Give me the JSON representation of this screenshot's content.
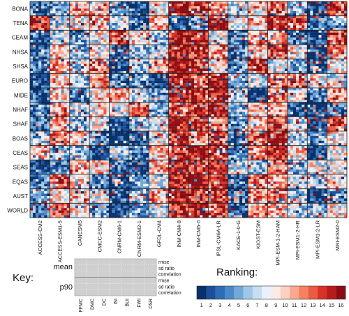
{
  "chart_data": {
    "type": "heatmap",
    "regions": [
      "BONA",
      "TENA",
      "CEAM",
      "NHSA",
      "SHSA",
      "EURO",
      "MIDE",
      "NHAF",
      "SHAF",
      "BOAS",
      "CEAS",
      "SEAS",
      "EQAS",
      "AUST",
      "WORLD"
    ],
    "models": [
      "ACCESS-CM2",
      "ACCESS-ESM1-5",
      "CANESM5",
      "CMCC-ESM2",
      "CNRM-CM6-1",
      "CNRM-ESM2-1",
      "GFDL-CM4",
      "INM-CM4-8",
      "INM-CM5-0",
      "IPSL-CM6A-LR",
      "KACE-1-0-G",
      "KIOST-ESM",
      "MPI-ESM-1-2-HAM",
      "MPI-ESM1-2-HR",
      "MPI-ESM1-2-LR",
      "MRI-ESM2-0"
    ],
    "indices": [
      "FFMC",
      "DMC",
      "DC",
      "ISI",
      "BUI",
      "FWI",
      "DSR"
    ],
    "metrics": [
      "rmse",
      "sd ratio",
      "correlation",
      "rmse",
      "sd ratio",
      "correlation"
    ],
    "statistics": [
      "mean",
      "p90"
    ],
    "block_rank": [
      [
        3,
        5,
        11,
        10,
        4,
        2,
        8,
        16,
        15,
        12,
        7,
        9,
        13,
        6,
        1,
        14
      ],
      [
        14,
        7,
        9,
        12,
        6,
        3,
        11,
        1,
        4,
        16,
        8,
        10,
        15,
        13,
        2,
        5
      ],
      [
        2,
        7,
        5,
        9,
        13,
        10,
        6,
        16,
        15,
        8,
        4,
        12,
        11,
        3,
        1,
        14
      ],
      [
        3,
        11,
        5,
        8,
        2,
        6,
        7,
        16,
        15,
        12,
        4,
        10,
        14,
        9,
        1,
        13
      ],
      [
        3,
        11,
        7,
        13,
        2,
        6,
        12,
        16,
        14,
        10,
        4,
        15,
        8,
        5,
        1,
        9
      ],
      [
        2,
        10,
        6,
        11,
        3,
        4,
        1,
        15,
        14,
        16,
        5,
        7,
        12,
        13,
        9,
        8
      ],
      [
        2,
        10,
        4,
        9,
        11,
        7,
        5,
        16,
        14,
        15,
        6,
        1,
        13,
        8,
        3,
        12
      ],
      [
        4,
        12,
        7,
        9,
        8,
        14,
        5,
        13,
        15,
        16,
        6,
        10,
        11,
        2,
        1,
        3
      ],
      [
        3,
        11,
        5,
        9,
        2,
        6,
        8,
        16,
        15,
        12,
        4,
        10,
        14,
        7,
        1,
        13
      ],
      [
        6,
        12,
        10,
        4,
        1,
        2,
        8,
        15,
        11,
        14,
        3,
        13,
        16,
        7,
        5,
        9
      ],
      [
        11,
        5,
        6,
        2,
        7,
        4,
        10,
        14,
        16,
        13,
        3,
        12,
        15,
        9,
        1,
        8
      ],
      [
        1,
        4,
        12,
        10,
        3,
        2,
        11,
        15,
        14,
        16,
        7,
        6,
        13,
        5,
        8,
        9
      ],
      [
        3,
        14,
        10,
        4,
        1,
        5,
        8,
        15,
        16,
        13,
        2,
        12,
        11,
        7,
        6,
        9
      ],
      [
        5,
        9,
        10,
        8,
        2,
        6,
        11,
        16,
        15,
        14,
        3,
        12,
        13,
        7,
        1,
        4
      ],
      [
        3,
        14,
        10,
        4,
        1,
        5,
        8,
        15,
        16,
        13,
        2,
        12,
        11,
        7,
        6,
        9
      ]
    ],
    "colorbar": {
      "title": "Ranking:",
      "ticks": [
        1,
        2,
        3,
        4,
        5,
        6,
        7,
        8,
        9,
        10,
        11,
        12,
        13,
        14,
        15,
        16
      ],
      "colors": [
        "#08306b",
        "#1b4f9c",
        "#2e6db5",
        "#4a8ac6",
        "#72a9d6",
        "#9fc8e6",
        "#c8def0",
        "#eaf2f9",
        "#fbeae6",
        "#fcd0c3",
        "#fca88e",
        "#f5815f",
        "#ea5b45",
        "#d63228",
        "#b71c1c",
        "#8b0d13"
      ]
    }
  },
  "key": {
    "title": "Key:",
    "stat_labels": [
      "mean",
      "p90"
    ],
    "metric_labels": [
      "rmse",
      "sd ratio",
      "correlation",
      "rmse",
      "sd ratio",
      "correlation"
    ],
    "index_labels": [
      "FFMC",
      "DMC",
      "DC",
      "ISI",
      "BUI",
      "FWI",
      "DSR"
    ]
  }
}
